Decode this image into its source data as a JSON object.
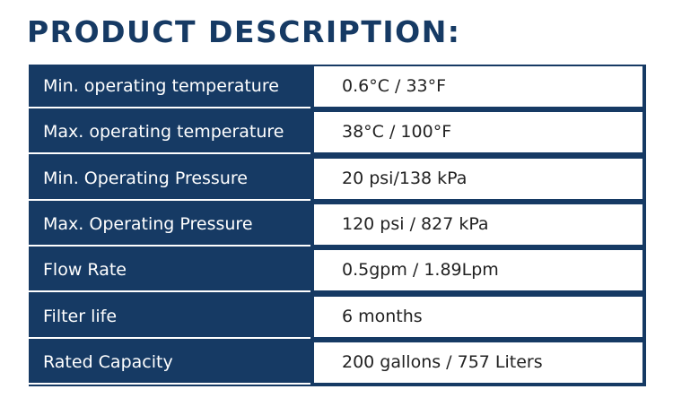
{
  "title": "PRODUCT DESCRIPTION:",
  "table": {
    "rows": [
      [
        "Min. operating temperature",
        "0.6°C / 33°F"
      ],
      [
        "Max. operating temperature",
        "38°C / 100°F"
      ],
      [
        "Min. Operating Pressure",
        "20 psi/138 kPa"
      ],
      [
        "Max. Operating Pressure",
        "120 psi / 827 kPa"
      ],
      [
        "Flow Rate",
        "0.5gpm / 1.89Lpm"
      ],
      [
        "Filter life",
        "6 months"
      ],
      [
        "Rated Capacity",
        "200 gallons / 757 Liters"
      ]
    ]
  }
}
